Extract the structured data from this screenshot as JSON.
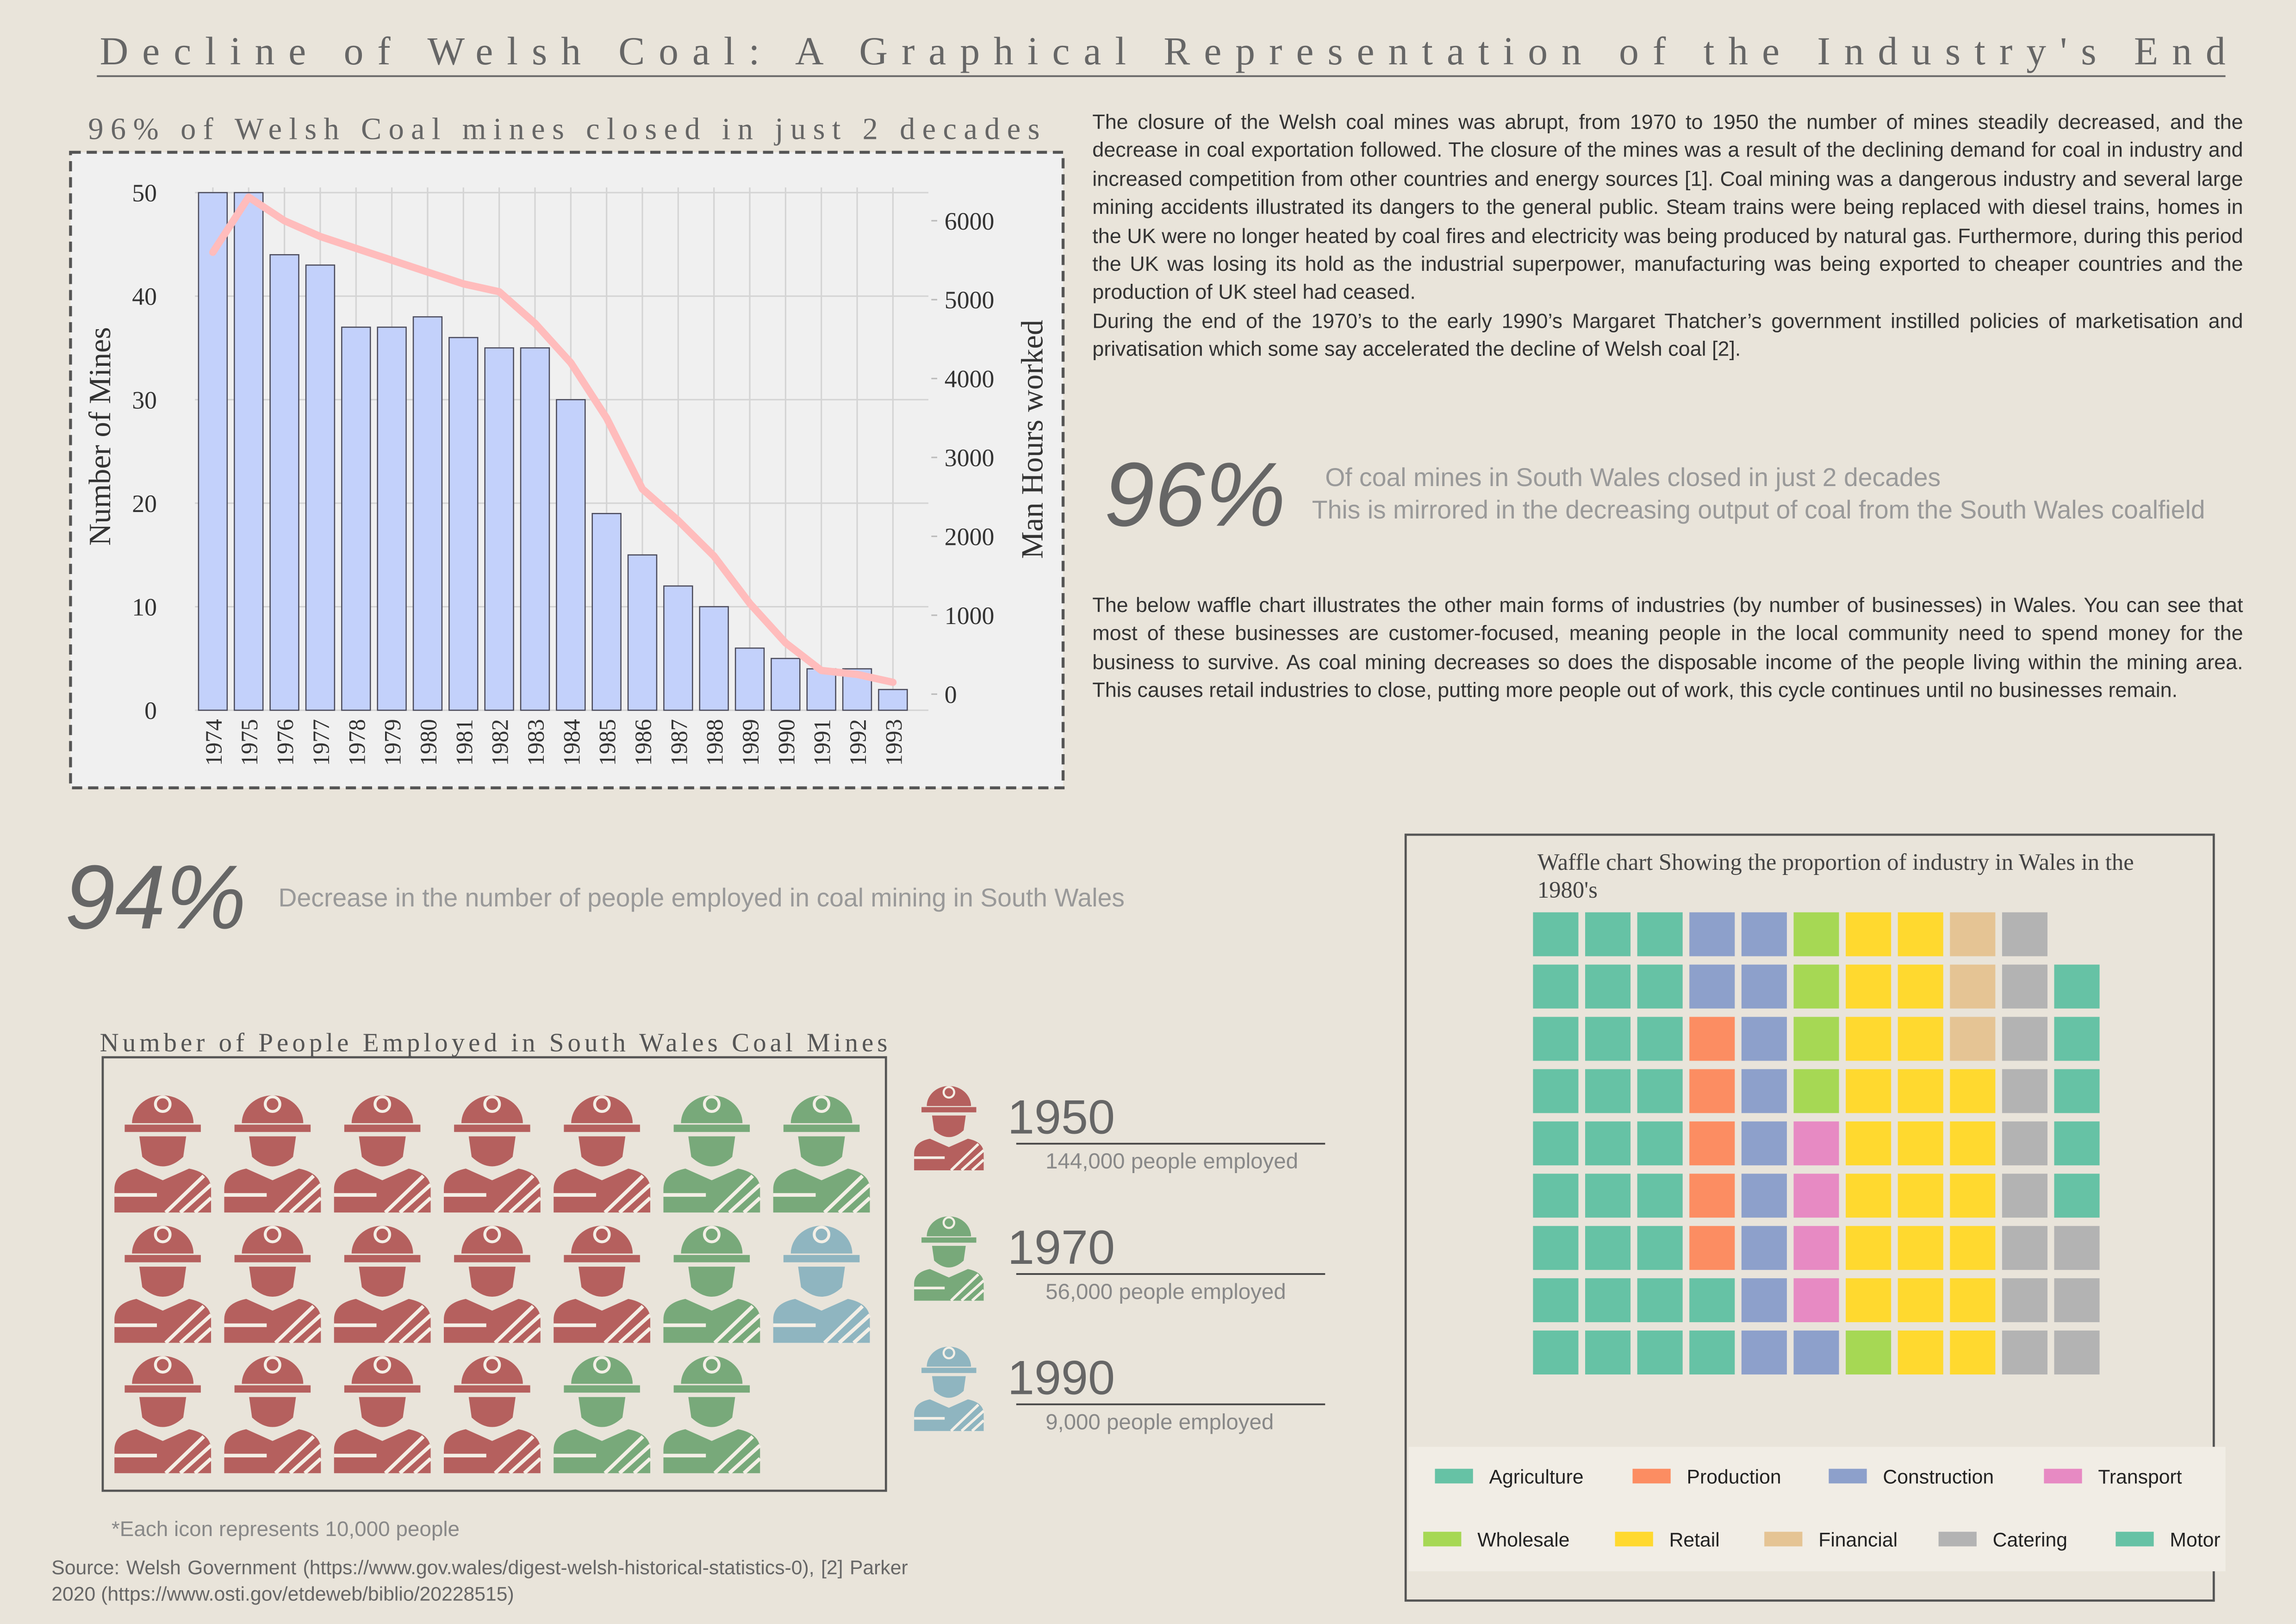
{
  "title": "Decline of Welsh Coal: A Graphical Representation of the Industry's End",
  "paragraphs": [
    "The closure of the Welsh coal mines was abrupt, from 1970 to 1950 the number of mines steadily decreased, and the decrease in coal exportation followed. The closure of the mines was a result of the declining demand for coal in industry and increased competition from other countries and energy sources [1]. Coal mining was a dangerous industry and several large mining accidents illustrated its dangers to the general public. Steam trains were being replaced with diesel trains, homes in the UK were no longer heated by coal fires and electricity was being produced by natural gas. Furthermore, during this period the UK was losing its hold as the industrial superpower, manufacturing was being exported to cheaper countries and the production of UK steel had ceased.",
    "During the end of the 1970’s to the early 1990’s Margaret Thatcher’s  government instilled policies of marketisation and privatisation which some say accelerated the decline of Welsh coal [2].",
    "The below waffle chart illustrates the other main forms of industries (by number of businesses) in Wales. You can see that most of these businesses are customer-focused, meaning people in the local community need to spend money for the business to survive. As coal mining decreases so does the disposable income of the people living within the mining area. This causes retail industries to close, putting more people out of work, this cycle continues until no businesses remain."
  ],
  "callouts": [
    {
      "figure": "96%",
      "lines": [
        "Of coal mines in South Wales closed in just 2 decades",
        "This is mirrored in the decreasing output of coal from the South Wales coalfield"
      ]
    },
    {
      "figure": "94%",
      "lines": [
        "Decrease in the number of people employed in coal mining in South Wales"
      ]
    }
  ],
  "source": "Source:  Welsh  Government  (https://www.gov.wales/digest-welsh-historical-statistics-0), [2] Parker 2020 (https://www.osti.gov/etdeweb/biblio/20228515)",
  "chart_data": [
    {
      "type": "bar-line",
      "title": "96% of Welsh Coal mines closed in just 2 decades",
      "ylabel": "Number of Mines",
      "y2label": "Man Hours worked",
      "categories": [
        "1974",
        "1975",
        "1976",
        "1977",
        "1978",
        "1979",
        "1980",
        "1981",
        "1982",
        "1983",
        "1984",
        "1985",
        "1986",
        "1987",
        "1988",
        "1989",
        "1990",
        "1991",
        "1992",
        "1993"
      ],
      "series": [
        {
          "type": "bar",
          "color": "#c3d1fb",
          "values": [
            50,
            50,
            44,
            43,
            37,
            37,
            38,
            36,
            35,
            35,
            30,
            19,
            15,
            12,
            10,
            6,
            5,
            4,
            4,
            2
          ]
        },
        {
          "type": "line",
          "axis": "y2",
          "color": "#ffbcbc",
          "values": [
            5600,
            6300,
            6000,
            5800,
            5650,
            5500,
            5350,
            5200,
            5100,
            4700,
            4200,
            3500,
            2600,
            2200,
            1750,
            1150,
            650,
            300,
            250,
            150
          ]
        }
      ],
      "ylim": [
        0,
        50.5
      ],
      "yticks": [
        0,
        10,
        20,
        30,
        40,
        50
      ],
      "y2lim": [
        -204,
        6422
      ],
      "y2ticks": [
        0,
        1000,
        2000,
        3000,
        4000,
        5000,
        6000
      ],
      "grid": true
    },
    {
      "type": "pictogram",
      "title": "Number of People Employed in South Wales Coal Mines",
      "note": "*Each icon represents 10,000 people",
      "categories": [
        "1950",
        "1970",
        "1990"
      ],
      "values": [
        144000,
        56000,
        9000
      ],
      "value_labels": [
        "144,000 people employed",
        "56,000 people employed",
        "9,000 people employed"
      ],
      "icons": [
        14,
        5,
        1
      ],
      "colors": [
        "#b5605e",
        "#78a97a",
        "#8fb5c0"
      ]
    },
    {
      "type": "waffle",
      "title": "Waffle chart Showing the proportion of industry in Wales in the 1980's",
      "categories": [
        "Agriculture",
        "Production",
        "Construction",
        "Transport",
        "Wholesale",
        "Retail",
        "Financial",
        "Catering",
        "Motor"
      ],
      "values": [
        29,
        5,
        12,
        4,
        5,
        23,
        3,
        12,
        5
      ],
      "colors": [
        "#66c2a5",
        "#fc8d62",
        "#8da0cb",
        "#e78ac3",
        "#a6d854",
        "#ffd92f",
        "#e5c494",
        "#b3b3b3",
        "#66c2a5"
      ]
    }
  ]
}
